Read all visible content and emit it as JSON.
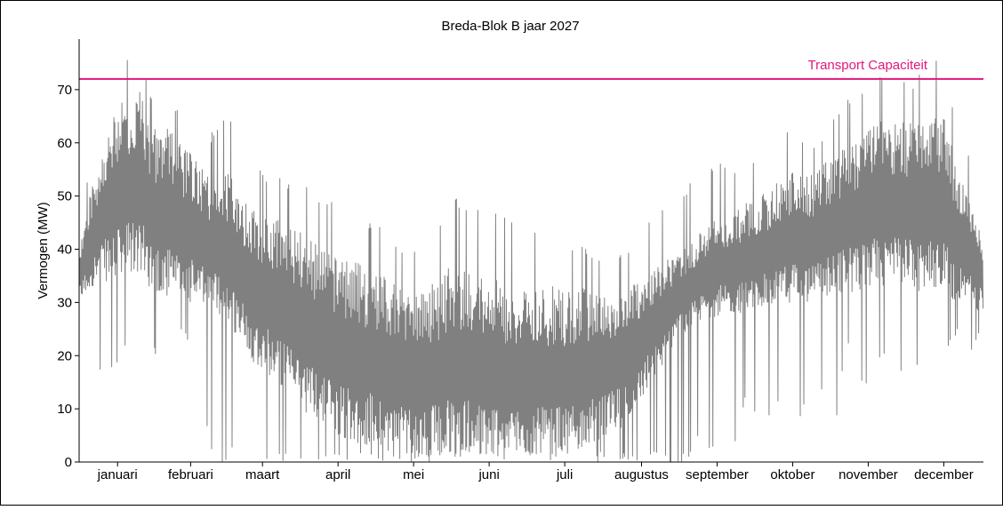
{
  "chart_data": {
    "type": "line",
    "title": "Breda-Blok B jaar 2027",
    "xlabel": "",
    "ylabel": "Vermogen (MW)",
    "ylim": [
      0,
      79.5
    ],
    "yticks": [
      0,
      10,
      20,
      30,
      40,
      50,
      60,
      70
    ],
    "xlim": [
      0,
      365
    ],
    "month_labels": [
      "januari",
      "februari",
      "maart",
      "april",
      "mei",
      "juni",
      "juli",
      "augustus",
      "september",
      "oktober",
      "november",
      "december"
    ],
    "month_label_positions": [
      15.5,
      45,
      74,
      104.5,
      135,
      165.5,
      196,
      227,
      257.5,
      288,
      318.5,
      349
    ],
    "series": [
      {
        "name": "",
        "color": "#808080",
        "x_unit": "day of year",
        "x": [
          0,
          5,
          10,
          15,
          20,
          25,
          30,
          35,
          40,
          45,
          50,
          55,
          60,
          65,
          70,
          75,
          80,
          85,
          90,
          95,
          100,
          105,
          110,
          115,
          120,
          125,
          130,
          135,
          140,
          145,
          150,
          155,
          160,
          165,
          170,
          175,
          180,
          185,
          190,
          195,
          200,
          205,
          210,
          215,
          220,
          225,
          230,
          235,
          240,
          245,
          250,
          255,
          260,
          265,
          270,
          275,
          280,
          285,
          290,
          295,
          300,
          305,
          310,
          315,
          320,
          325,
          330,
          335,
          340,
          345,
          350,
          355,
          360,
          365
        ],
        "upper_envelope": [
          45,
          58,
          68,
          72,
          76,
          77,
          68,
          70,
          66,
          63,
          60,
          63,
          67,
          56,
          58,
          54,
          56,
          52,
          53,
          51,
          50,
          48,
          47,
          46,
          45,
          43,
          41,
          40,
          42,
          45,
          51,
          48,
          49,
          50,
          47,
          45,
          44,
          43,
          43,
          42,
          40,
          41,
          38,
          40,
          39,
          42,
          46,
          49,
          50,
          52,
          54,
          55,
          57,
          55,
          57,
          59,
          62,
          63,
          63,
          60,
          62,
          66,
          68,
          70,
          72,
          73,
          72,
          71,
          74,
          76,
          74,
          60,
          57,
          46
        ],
        "typical_upper": [
          40,
          52,
          60,
          66,
          70,
          70,
          63,
          64,
          60,
          58,
          55,
          54,
          55,
          50,
          48,
          46,
          46,
          44,
          44,
          42,
          40,
          39,
          38,
          37,
          36,
          34,
          33,
          32,
          33,
          34,
          37,
          36,
          35,
          36,
          34,
          33,
          33,
          32,
          33,
          33,
          32,
          33,
          32,
          33,
          33,
          34,
          36,
          38,
          39,
          41,
          43,
          45,
          47,
          47,
          49,
          50,
          52,
          54,
          55,
          54,
          56,
          58,
          60,
          62,
          63,
          65,
          65,
          64,
          65,
          66,
          64,
          54,
          50,
          42
        ],
        "typical_lower": [
          30,
          33,
          34,
          34,
          35,
          35,
          32,
          31,
          30,
          30,
          29,
          28,
          26,
          23,
          19,
          17,
          15,
          12,
          10,
          8,
          7,
          5,
          4,
          3,
          3,
          2,
          2,
          1,
          1,
          1,
          2,
          2,
          1,
          1,
          1,
          1,
          1,
          1,
          1,
          1,
          2,
          3,
          4,
          5,
          7,
          10,
          14,
          18,
          22,
          24,
          26,
          27,
          28,
          28,
          28,
          29,
          29,
          30,
          30,
          30,
          31,
          31,
          32,
          32,
          33,
          33,
          33,
          33,
          32,
          32,
          31,
          30,
          29,
          28
        ],
        "lower_envelope": [
          25,
          22,
          14,
          18,
          21,
          12,
          22,
          6,
          25,
          22,
          8,
          0,
          0,
          4,
          0,
          0,
          0,
          0,
          0,
          0,
          0,
          0,
          0,
          0,
          0,
          0,
          0,
          0,
          0,
          0,
          0,
          0,
          0,
          0,
          0,
          0,
          0,
          0,
          0,
          0,
          0,
          0,
          0,
          0,
          0,
          0,
          0,
          0,
          0,
          0,
          5,
          2,
          8,
          3,
          14,
          5,
          10,
          12,
          6,
          15,
          13,
          6,
          22,
          14,
          15,
          20,
          16,
          17,
          17,
          18,
          21,
          24,
          20,
          26
        ]
      }
    ],
    "reference_line": {
      "label": "Transport Capaciteit",
      "value": 72,
      "color": "#e0177d"
    },
    "grid": false,
    "legend": "none"
  }
}
